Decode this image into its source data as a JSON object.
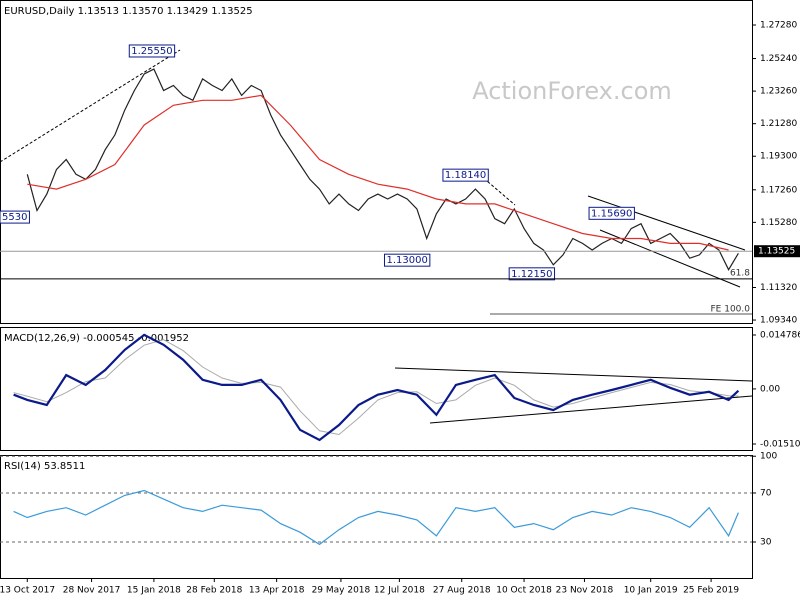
{
  "chart_data": [
    {
      "type": "line",
      "title": "EURUSD,Daily  1.13513 1.13570 1.13429 1.13525",
      "watermark": "ActionForex.com",
      "notes": [
        "61.8",
        "FE 100.0"
      ],
      "ylim": [
        1.0916,
        1.288
      ],
      "yticks": [
        {
          "value": 1.2728,
          "label": "1.27280"
        },
        {
          "value": 1.2524,
          "label": "1.25240"
        },
        {
          "value": 1.2326,
          "label": "1.23260"
        },
        {
          "value": 1.2128,
          "label": "1.21280"
        },
        {
          "value": 1.193,
          "label": "1.19300"
        },
        {
          "value": 1.1726,
          "label": "1.17260"
        },
        {
          "value": 1.1528,
          "label": "1.15280"
        },
        {
          "value": 1.1132,
          "label": "1.11320"
        },
        {
          "value": 1.0934,
          "label": "1.09340"
        }
      ],
      "last_price": {
        "value": 1.13525,
        "label": "1.13525"
      },
      "annotations": [
        {
          "label": "5530",
          "value": 1.156,
          "x": -7
        },
        {
          "label": "1.25550",
          "value": 1.257,
          "x": 64
        },
        {
          "label": "1.13000",
          "value": 1.1298,
          "x": 195
        },
        {
          "label": "1.18140",
          "value": 1.1815,
          "x": 225
        },
        {
          "label": "1.12150",
          "value": 1.1215,
          "x": 259
        },
        {
          "label": "1.15690",
          "value": 1.1583,
          "x": 300
        }
      ],
      "series": [
        {
          "color": "#222222",
          "x": [
            0,
            5,
            10,
            15,
            20,
            25,
            30,
            35,
            40,
            45,
            50,
            55,
            60,
            65,
            70,
            75,
            80,
            85,
            90,
            95,
            100,
            105,
            110,
            115,
            120,
            125,
            130,
            135,
            140,
            145,
            150,
            155,
            160,
            165,
            170,
            175,
            180,
            185,
            190,
            195,
            200,
            205,
            210,
            215,
            220,
            225,
            230,
            235,
            240,
            245,
            250,
            255,
            260,
            265,
            270,
            275,
            280,
            285,
            290,
            295,
            300,
            305,
            310,
            315,
            320,
            325,
            330,
            335,
            340,
            345,
            350,
            355,
            360,
            365
          ],
          "values": [
            1.182,
            1.16,
            1.17,
            1.185,
            1.191,
            1.182,
            1.179,
            1.185,
            1.197,
            1.206,
            1.221,
            1.233,
            1.243,
            1.246,
            1.233,
            1.236,
            1.23,
            1.227,
            1.24,
            1.236,
            1.233,
            1.24,
            1.23,
            1.236,
            1.233,
            1.218,
            1.206,
            1.197,
            1.188,
            1.179,
            1.173,
            1.164,
            1.17,
            1.164,
            1.16,
            1.167,
            1.17,
            1.167,
            1.17,
            1.167,
            1.161,
            1.143,
            1.158,
            1.167,
            1.164,
            1.167,
            1.173,
            1.167,
            1.155,
            1.152,
            1.161,
            1.149,
            1.14,
            1.136,
            1.127,
            1.133,
            1.143,
            1.14,
            1.136,
            1.14,
            1.143,
            1.14,
            1.149,
            1.152,
            1.14,
            1.143,
            1.146,
            1.14,
            1.131,
            1.133,
            1.14,
            1.136,
            1.124,
            1.134
          ]
        },
        {
          "color": "#e0302a",
          "x": [
            0,
            15,
            30,
            45,
            60,
            75,
            90,
            105,
            120,
            135,
            150,
            165,
            180,
            195,
            210,
            225,
            240,
            255,
            270,
            285,
            300,
            315,
            330,
            345,
            360
          ],
          "values": [
            1.176,
            1.173,
            1.179,
            1.188,
            1.212,
            1.224,
            1.227,
            1.227,
            1.23,
            1.212,
            1.191,
            1.182,
            1.176,
            1.173,
            1.167,
            1.164,
            1.164,
            1.158,
            1.152,
            1.146,
            1.143,
            1.143,
            1.14,
            1.14,
            1.136
          ]
        }
      ]
    },
    {
      "type": "line",
      "title": "MACD(12,26,9) -0.000545 -0.001952",
      "ylim": [
        -0.016753,
        0.01698
      ],
      "yticks": [
        0.014786,
        {
          "value": 0,
          "label": "0.00"
        },
        -0.015107
      ],
      "series": [
        {
          "color": "#aaaaaa",
          "x": [
            -7,
            0,
            10,
            20,
            30,
            40,
            50,
            60,
            70,
            80,
            90,
            100,
            110,
            120,
            130,
            140,
            150,
            160,
            170,
            180,
            190,
            200,
            210,
            220,
            230,
            240,
            250,
            260,
            270,
            280,
            290,
            300,
            310,
            320,
            330,
            340,
            350,
            360,
            365
          ],
          "values": [
            -0.001,
            -0.002,
            -0.0035,
            -0.001,
            0.002,
            0.003,
            0.008,
            0.012,
            0.0135,
            0.0105,
            0.006,
            0.003,
            0.0015,
            0.0018,
            0.0005,
            -0.006,
            -0.0115,
            -0.0125,
            -0.008,
            -0.003,
            -0.001,
            -0.0008,
            -0.004,
            -0.003,
            0.001,
            0.003,
            0.001,
            -0.003,
            -0.005,
            -0.004,
            -0.0025,
            -0.001,
            0.0004,
            0.0018,
            0.0012,
            -0.0005,
            -0.001,
            -0.0019,
            -0.00195
          ]
        },
        {
          "color": "#0b1a8a",
          "x": [
            -7,
            0,
            10,
            20,
            30,
            40,
            50,
            60,
            70,
            80,
            90,
            100,
            110,
            120,
            130,
            140,
            150,
            160,
            170,
            180,
            190,
            200,
            210,
            220,
            230,
            240,
            250,
            260,
            270,
            280,
            290,
            300,
            310,
            320,
            330,
            340,
            350,
            360,
            365
          ],
          "values": [
            -0.0016,
            -0.003,
            -0.0044,
            0.0038,
            0.0011,
            0.0052,
            0.0107,
            0.0148,
            0.0121,
            0.008,
            0.0025,
            0.0011,
            0.0011,
            0.0025,
            -0.003,
            -0.0112,
            -0.014,
            -0.0099,
            -0.0044,
            -0.0016,
            -0.0003,
            -0.0016,
            -0.0071,
            0.0011,
            0.0025,
            0.0038,
            -0.0025,
            -0.0044,
            -0.0058,
            -0.003,
            -0.0016,
            -0.0003,
            0.0011,
            0.0025,
            0.0003,
            -0.0016,
            -0.0008,
            -0.003,
            -0.0005
          ]
        }
      ]
    },
    {
      "type": "line",
      "title": "RSI(14) 53.8511",
      "ylim": [
        0.6,
        101
      ],
      "yticks": [
        100,
        70,
        30
      ],
      "grid": true,
      "xlim": [
        -14,
        372
      ],
      "xticks": [
        {
          "value": 0,
          "label": "13 Oct 2017"
        },
        {
          "value": 33,
          "label": "28 Nov 2017"
        },
        {
          "value": 65,
          "label": "15 Jan 2018"
        },
        {
          "value": 96,
          "label": "28 Feb 2018"
        },
        {
          "value": 128,
          "label": "13 Apr 2018"
        },
        {
          "value": 161,
          "label": "29 May 2018"
        },
        {
          "value": 191,
          "label": "12 Jul 2018"
        },
        {
          "value": 223,
          "label": "27 Aug 2018"
        },
        {
          "value": 255,
          "label": "10 Oct 2018"
        },
        {
          "value": 286,
          "label": "23 Nov 2018"
        },
        {
          "value": 320,
          "label": "10 Jan 2019"
        },
        {
          "value": 351,
          "label": "25 Feb 2019"
        }
      ],
      "series": [
        {
          "color": "#3a9ad9",
          "x": [
            -7,
            0,
            10,
            20,
            30,
            40,
            50,
            60,
            70,
            80,
            90,
            100,
            110,
            120,
            130,
            140,
            150,
            160,
            170,
            180,
            190,
            200,
            210,
            220,
            230,
            240,
            250,
            260,
            270,
            280,
            290,
            300,
            310,
            320,
            330,
            340,
            350,
            360,
            365
          ],
          "values": [
            55,
            50,
            55,
            58,
            52,
            60,
            68,
            72,
            65,
            58,
            55,
            60,
            58,
            56,
            45,
            38,
            28,
            40,
            50,
            55,
            52,
            48,
            35,
            58,
            55,
            58,
            42,
            45,
            40,
            50,
            55,
            52,
            58,
            55,
            50,
            42,
            58,
            35,
            54
          ]
        }
      ]
    }
  ]
}
